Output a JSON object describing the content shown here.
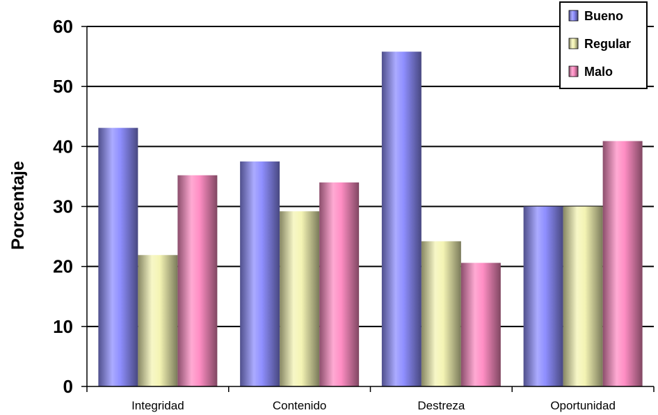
{
  "chart_data": {
    "type": "bar",
    "title": "",
    "xlabel": "",
    "ylabel": "Porcentaje",
    "categories": [
      "Integridad",
      "Contenido",
      "Destreza",
      "Oportunidad"
    ],
    "series": [
      {
        "name": "Bueno",
        "values": [
          43.1,
          37.5,
          55.8,
          30.0
        ],
        "color": "#8f8fff"
      },
      {
        "name": "Regular",
        "values": [
          21.9,
          29.2,
          24.2,
          30.0
        ],
        "color": "#f4f4b4"
      },
      {
        "name": "Malo",
        "values": [
          35.2,
          34.0,
          20.6,
          40.9
        ],
        "color": "#ff8ec4"
      }
    ],
    "ylim": [
      0,
      60
    ],
    "yticks": [
      0,
      10,
      20,
      30,
      40,
      50,
      60
    ],
    "grid": true,
    "legend_position": "top-right"
  }
}
